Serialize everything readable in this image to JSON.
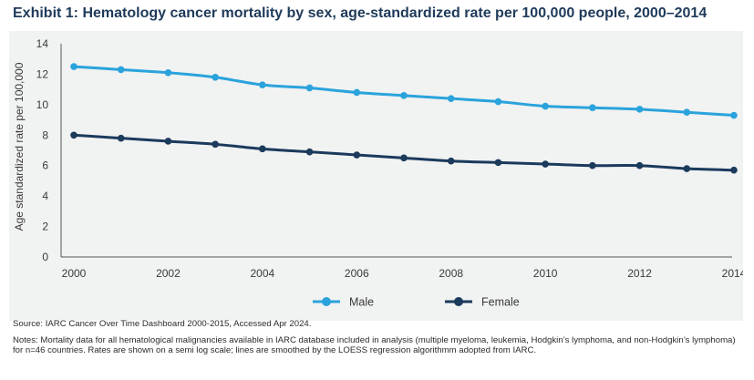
{
  "title": "Exhibit 1: Hematology cancer mortality by sex, age-standardized rate per 100,000 people, 2000–2014",
  "source": "Source: IARC Cancer Over Time Dashboard 2000-2015, Accessed Apr 2024.",
  "notes": "Notes: Mortality data for all hematological malignancies available in IARC database included in analysis (multiple myeloma, leukemia, Hodgkin’s lymphoma, and non-Hodgkin’s lymphoma) for n=46 countries. Rates are shown on a semi log scale; lines are smoothed by the LOESS regression algorithmm adopted from IARC.",
  "colors": {
    "male": "#2aa3dc",
    "female": "#1b3a5c",
    "axis": "#555555",
    "panel": "#f1f2f2"
  },
  "chart_data": {
    "type": "line",
    "title": "Exhibit 1: Hematology cancer mortality by sex, age-standardized rate per 100,000 people, 2000–2014",
    "xlabel": "",
    "ylabel": "Age standardized rate  per 100,000",
    "xlim": [
      2000,
      2014
    ],
    "ylim": [
      0,
      14
    ],
    "x_ticks": [
      "2000",
      "2002",
      "2004",
      "2006",
      "2008",
      "2010",
      "2012",
      "2014"
    ],
    "y_ticks": [
      "0",
      "2",
      "4",
      "6",
      "8",
      "10",
      "12",
      "14"
    ],
    "x": [
      2000,
      2001,
      2002,
      2003,
      2004,
      2005,
      2006,
      2007,
      2008,
      2009,
      2010,
      2011,
      2012,
      2013,
      2014
    ],
    "series": [
      {
        "name": "Male",
        "color": "#2aa3dc",
        "values": [
          12.5,
          12.3,
          12.1,
          11.8,
          11.3,
          11.1,
          10.8,
          10.6,
          10.4,
          10.2,
          9.9,
          9.8,
          9.7,
          9.5,
          9.3
        ]
      },
      {
        "name": "Female",
        "color": "#1b3a5c",
        "values": [
          8.0,
          7.8,
          7.6,
          7.4,
          7.1,
          6.9,
          6.7,
          6.5,
          6.3,
          6.2,
          6.1,
          6.0,
          6.0,
          5.8,
          5.7
        ]
      }
    ],
    "legend": {
      "position": "bottom-center",
      "entries": [
        "Male",
        "Female"
      ]
    },
    "grid": false
  }
}
